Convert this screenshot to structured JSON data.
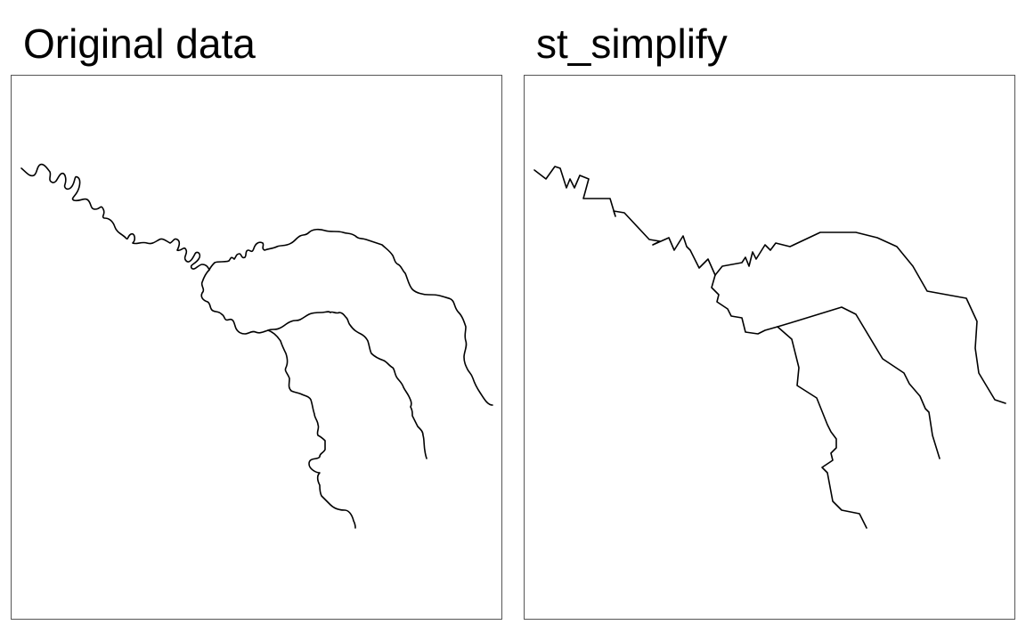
{
  "panels": [
    {
      "title": "Original data"
    },
    {
      "title": "st_simplify"
    }
  ],
  "colors": {
    "background": "#ffffff",
    "river_line": "#000000",
    "frame": "#555555"
  }
}
